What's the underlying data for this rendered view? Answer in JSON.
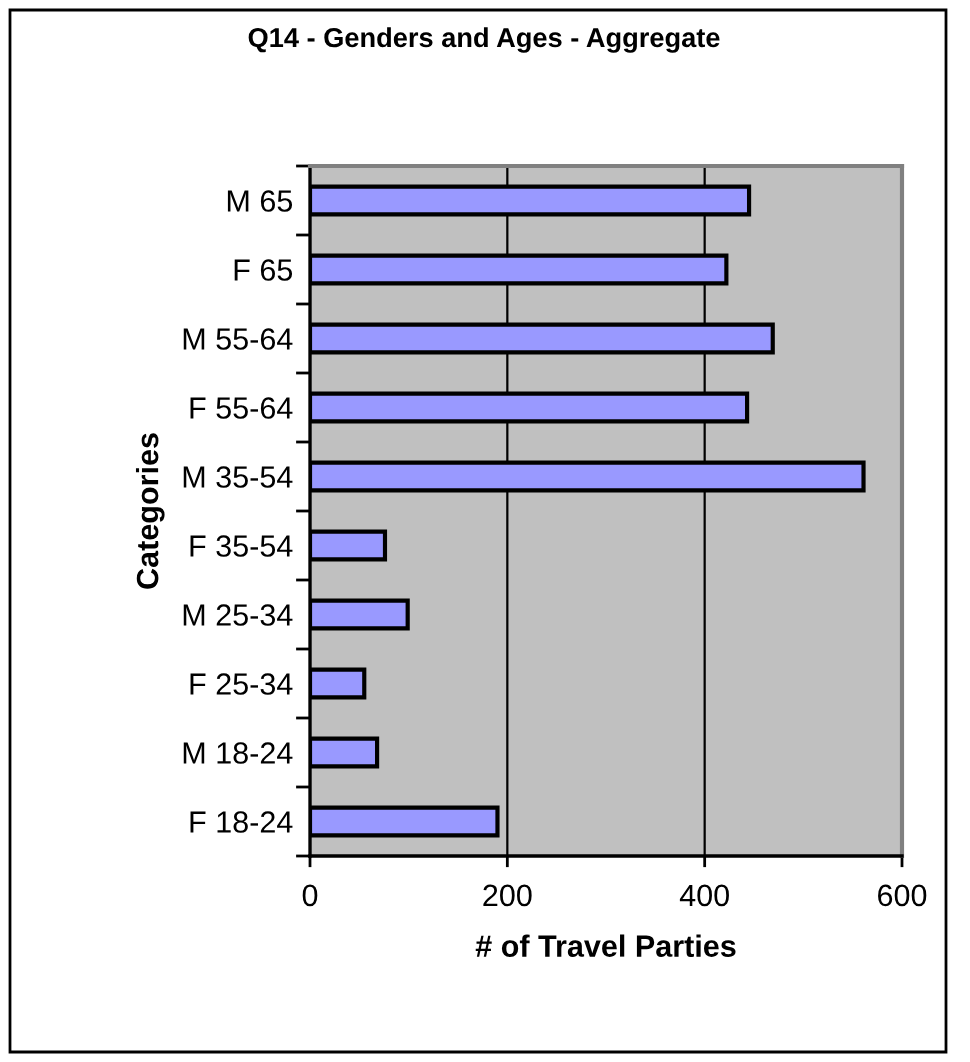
{
  "chart_data": {
    "type": "bar",
    "orientation": "horizontal",
    "title": "Q14 - Genders and Ages - Aggregate",
    "xlabel": "# of Travel Parties",
    "ylabel": "Categories",
    "categories": [
      "M 65",
      "F 65",
      "M 55-64",
      "F 55-64",
      "M 35-54",
      "F 35-54",
      "M 25-34",
      "F 25-34",
      "M 18-24",
      "F 18-24"
    ],
    "values": [
      445,
      422,
      469,
      443,
      561,
      76,
      99,
      55,
      68,
      190
    ],
    "color": "#9999ff",
    "xlim": [
      0,
      600
    ],
    "xticks": [
      0,
      200,
      400,
      600
    ],
    "grid": "x"
  }
}
